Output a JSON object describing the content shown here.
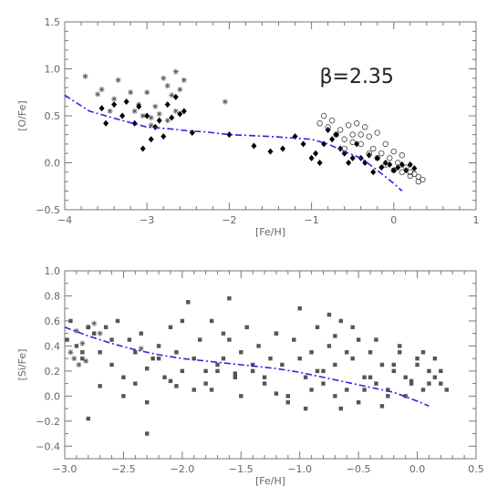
{
  "chart_data": [
    {
      "type": "scatter",
      "xlabel": "[Fe/H]",
      "ylabel": "[O/Fe]",
      "xlim": [
        -4,
        1
      ],
      "ylim": [
        -0.5,
        1.5
      ],
      "xticks": [
        -4,
        -3,
        -2,
        -1,
        0,
        1
      ],
      "yticks": [
        -0.5,
        0.0,
        0.5,
        1.0,
        1.5
      ],
      "xtick_labels": [
        "−4",
        "−3",
        "−2",
        "−1",
        "0",
        "1"
      ],
      "ytick_labels": [
        "−0.5",
        "0.0",
        "0.5",
        "1.0",
        "1.5"
      ],
      "annotation": {
        "label": "β=2.35",
        "x": -0.45,
        "y": 0.85
      },
      "colors": {
        "model": "#3a1de0",
        "diamonds": "#000000",
        "asterisks": "#555555",
        "circles": "#444444"
      },
      "series": [
        {
          "marker": "asterisk",
          "x": [
            -3.75,
            -3.6,
            -3.55,
            -3.45,
            -3.4,
            -3.35,
            -3.2,
            -3.15,
            -3.1,
            -3.05,
            -3.0,
            -2.95,
            -2.9,
            -2.85,
            -2.8,
            -2.75,
            -2.7,
            -2.65,
            -2.6,
            -2.55,
            -2.05,
            -2.65,
            -2.75,
            -2.95
          ],
          "y": [
            0.92,
            0.73,
            0.78,
            0.55,
            0.68,
            0.88,
            0.75,
            0.55,
            0.62,
            0.5,
            0.75,
            0.48,
            0.6,
            0.52,
            0.9,
            0.82,
            0.72,
            0.97,
            0.78,
            0.88,
            0.65,
            0.55,
            0.45,
            0.4
          ]
        },
        {
          "marker": "diamond",
          "x": [
            -3.55,
            -3.5,
            -3.4,
            -3.3,
            -3.25,
            -3.15,
            -3.1,
            -3.05,
            -3.0,
            -2.95,
            -2.9,
            -2.85,
            -2.8,
            -2.75,
            -2.7,
            -2.65,
            -2.6,
            -2.55,
            -2.45,
            -2.0,
            -1.7,
            -1.5,
            -1.35,
            -1.2,
            -1.1,
            -1.0,
            -0.95,
            -0.9,
            -0.85,
            -0.8,
            -0.75,
            -0.7,
            -0.65,
            -0.6,
            -0.55,
            -0.5,
            -0.45,
            -0.4,
            -0.35,
            -0.3,
            -0.25,
            -0.2,
            -0.15,
            -0.1,
            -0.05,
            0.0,
            0.05,
            0.1,
            0.15,
            0.2,
            0.25
          ],
          "y": [
            0.58,
            0.42,
            0.62,
            0.5,
            0.65,
            0.42,
            0.6,
            0.15,
            0.5,
            0.25,
            0.38,
            0.45,
            0.28,
            0.62,
            0.48,
            0.7,
            0.52,
            0.55,
            0.32,
            0.3,
            0.18,
            0.12,
            0.15,
            0.28,
            0.2,
            0.05,
            0.1,
            0.0,
            0.2,
            0.35,
            0.25,
            0.3,
            0.15,
            0.1,
            0.0,
            0.05,
            0.2,
            0.05,
            0.0,
            0.08,
            -0.1,
            0.05,
            -0.05,
            0.0,
            -0.02,
            -0.08,
            -0.05,
            -0.02,
            -0.08,
            -0.02,
            -0.06
          ]
        },
        {
          "marker": "circle",
          "x": [
            -0.9,
            -0.85,
            -0.8,
            -0.75,
            -0.7,
            -0.65,
            -0.6,
            -0.55,
            -0.5,
            -0.45,
            -0.4,
            -0.35,
            -0.3,
            -0.25,
            -0.2,
            -0.15,
            -0.1,
            -0.05,
            0.0,
            0.05,
            0.1,
            0.15,
            0.2,
            0.25,
            0.3,
            0.35,
            -0.6,
            -0.4,
            -0.2,
            0.0,
            0.1,
            0.2,
            0.3,
            -0.5,
            -0.3,
            -0.1
          ],
          "y": [
            0.42,
            0.5,
            0.38,
            0.45,
            0.3,
            0.35,
            0.25,
            0.4,
            0.3,
            0.42,
            0.2,
            0.38,
            0.28,
            0.15,
            0.32,
            0.1,
            0.2,
            0.05,
            0.12,
            0.0,
            0.08,
            -0.05,
            -0.1,
            -0.12,
            -0.15,
            -0.18,
            0.15,
            0.3,
            0.05,
            -0.08,
            -0.1,
            -0.14,
            -0.2,
            0.22,
            0.1,
            -0.02
          ]
        },
        {
          "marker": "dashed-line",
          "x": [
            -4.0,
            -3.7,
            -3.5,
            -3.3,
            -3.0,
            -2.7,
            -2.5,
            -2.3,
            -2.0,
            -1.5,
            -1.0,
            -0.8,
            -0.6,
            -0.4,
            -0.2,
            0.0,
            0.1
          ],
          "y": [
            0.72,
            0.55,
            0.5,
            0.45,
            0.38,
            0.36,
            0.34,
            0.33,
            0.3,
            0.28,
            0.25,
            0.2,
            0.12,
            0.05,
            -0.08,
            -0.22,
            -0.3
          ]
        }
      ]
    },
    {
      "type": "scatter",
      "xlabel": "[Fe/H]",
      "ylabel": "[Si/Fe]",
      "xlim": [
        -3.0,
        0.5
      ],
      "ylim": [
        -0.5,
        1.0
      ],
      "xticks": [
        -3.0,
        -2.5,
        -2.0,
        -1.5,
        -1.0,
        -0.5,
        0.0,
        0.5
      ],
      "yticks": [
        -0.4,
        -0.2,
        0.0,
        0.2,
        0.4,
        0.6,
        0.8,
        1.0
      ],
      "xtick_labels": [
        "−3.0",
        "−2.5",
        "−2.0",
        "−1.5",
        "−1.0",
        "−0.5",
        "0.0",
        "0.5"
      ],
      "ytick_labels": [
        "−0.4",
        "−0.2",
        "0.0",
        "0.2",
        "0.4",
        "0.6",
        "0.8",
        "1.0"
      ],
      "colors": {
        "model": "#3a1de0",
        "squares": "#555555",
        "asterisks": "#555555"
      },
      "series": [
        {
          "marker": "asterisk",
          "x": [
            -2.95,
            -2.9,
            -2.85,
            -2.8,
            -2.75,
            -2.7,
            -2.88,
            -2.92,
            -2.82,
            -2.35
          ],
          "y": [
            0.35,
            0.52,
            0.42,
            0.55,
            0.58,
            0.5,
            0.25,
            0.3,
            0.28,
            0.38
          ]
        },
        {
          "marker": "square",
          "x": [
            -2.98,
            -2.95,
            -2.9,
            -2.85,
            -2.8,
            -2.75,
            -2.7,
            -2.65,
            -2.6,
            -2.55,
            -2.5,
            -2.45,
            -2.4,
            -2.35,
            -2.3,
            -2.25,
            -2.2,
            -2.15,
            -2.1,
            -2.05,
            -2.0,
            -1.95,
            -1.9,
            -1.85,
            -1.8,
            -1.75,
            -1.7,
            -1.65,
            -1.6,
            -1.55,
            -1.5,
            -1.45,
            -1.4,
            -1.35,
            -1.3,
            -1.25,
            -1.2,
            -1.15,
            -1.1,
            -1.05,
            -1.0,
            -0.95,
            -0.9,
            -0.85,
            -0.8,
            -0.75,
            -0.7,
            -0.65,
            -0.6,
            -0.55,
            -0.5,
            -0.45,
            -0.4,
            -0.35,
            -0.3,
            -0.25,
            -0.2,
            -0.15,
            -0.1,
            -0.05,
            0.0,
            0.05,
            0.1,
            0.15,
            0.2,
            0.25,
            -2.8,
            -2.6,
            -2.4,
            -2.2,
            -2.0,
            -1.8,
            -1.6,
            -1.4,
            -1.2,
            -1.0,
            -0.8,
            -0.6,
            -0.4,
            -0.2,
            0.0,
            0.2,
            -2.7,
            -2.5,
            -2.3,
            -2.1,
            -1.9,
            -1.7,
            -1.5,
            -1.3,
            -1.1,
            -0.9,
            -0.7,
            -0.5,
            -0.3,
            -0.1,
            0.1,
            -2.85,
            -2.3,
            -1.75,
            -1.55,
            -1.2,
            -0.95,
            -0.65,
            -0.45,
            -0.25,
            -0.05,
            -2.05,
            -1.65,
            -0.75,
            -0.55,
            -0.35,
            -0.15,
            0.05,
            0.15,
            -0.85,
            -0.7
          ],
          "y": [
            0.45,
            0.6,
            0.4,
            0.3,
            -0.18,
            0.5,
            0.35,
            0.55,
            0.25,
            0.6,
            0.15,
            0.45,
            0.1,
            0.5,
            -0.3,
            0.3,
            0.4,
            0.15,
            0.55,
            0.35,
            0.2,
            0.75,
            0.3,
            0.45,
            0.1,
            0.6,
            0.25,
            0.5,
            0.78,
            0.15,
            0.35,
            0.55,
            0.2,
            0.4,
            0.1,
            0.3,
            0.5,
            0.25,
            0.0,
            0.45,
            0.7,
            0.15,
            0.35,
            0.55,
            0.1,
            0.4,
            0.25,
            0.6,
            0.05,
            0.3,
            0.45,
            0.15,
            0.35,
            0.1,
            0.25,
            0.05,
            0.2,
            0.35,
            0.15,
            0.1,
            0.25,
            0.05,
            0.2,
            0.15,
            0.1,
            0.05,
            0.55,
            0.45,
            0.35,
            0.3,
            0.6,
            0.2,
            0.45,
            0.25,
            0.5,
            0.3,
            0.2,
            0.35,
            0.15,
            0.25,
            0.3,
            0.2,
            0.08,
            0.0,
            -0.05,
            0.12,
            0.05,
            0.2,
            0.0,
            0.15,
            -0.05,
            0.05,
            0.0,
            -0.05,
            -0.08,
            0.0,
            0.1,
            0.35,
            0.22,
            0.05,
            0.18,
            0.02,
            -0.1,
            -0.1,
            0.05,
            0.0,
            0.12,
            0.08,
            0.3,
            0.65,
            0.55,
            0.45,
            0.4,
            0.35,
            0.3,
            0.2,
            0.48
          ]
        },
        {
          "marker": "dashed-line",
          "x": [
            -3.0,
            -2.8,
            -2.6,
            -2.4,
            -2.2,
            -2.0,
            -1.8,
            -1.6,
            -1.4,
            -1.2,
            -1.0,
            -0.8,
            -0.6,
            -0.4,
            -0.2,
            0.0,
            0.1
          ],
          "y": [
            0.55,
            0.48,
            0.42,
            0.37,
            0.33,
            0.3,
            0.28,
            0.26,
            0.24,
            0.22,
            0.19,
            0.15,
            0.11,
            0.07,
            0.03,
            -0.04,
            -0.08
          ]
        }
      ]
    }
  ]
}
